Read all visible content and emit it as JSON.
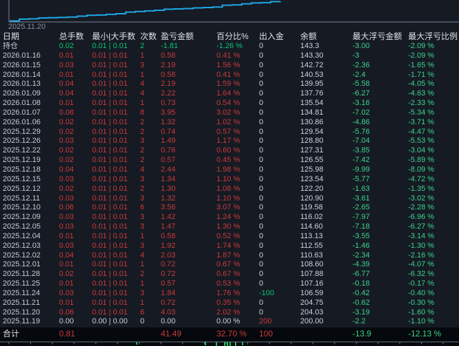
{
  "colors": {
    "background": "#151a23",
    "accent_line": "#1ea7e6",
    "profit_red": "#cc3a3a",
    "loss_green": "#0cc674",
    "float_green": "#3dd68c",
    "text": "#ccd3dd",
    "muted": "#8b93a0",
    "total_row_bg": "#05080c",
    "bottom_bar_green": "#18c060"
  },
  "chart_data": [
    {
      "type": "line",
      "name": "cumulative-profit-equity-curve",
      "title": "",
      "x_start_label": "2025.11.20",
      "x": [
        "2025.11.19",
        "2025.11.20",
        "2025.11.21",
        "2025.11.24",
        "2025.11.25",
        "2025.11.28",
        "2025.12.01",
        "2025.12.02",
        "2025.12.03",
        "2025.12.04",
        "2025.12.05",
        "2025.12.09",
        "2025.12.10",
        "2025.12.11",
        "2025.12.12",
        "2025.12.15",
        "2025.12.18",
        "2025.12.19",
        "2025.12.22",
        "2025.12.26",
        "2025.12.29",
        "2026.01.06",
        "2026.01.07",
        "2026.01.08",
        "2026.01.09",
        "2026.01.13",
        "2026.01.14",
        "2026.01.15",
        "2026.01.16"
      ],
      "values": [
        0,
        4.03,
        4.75,
        6.59,
        7.16,
        7.88,
        8.6,
        10.63,
        12.55,
        13.13,
        14.6,
        16.02,
        19.58,
        20.9,
        22.2,
        23.54,
        25.98,
        26.55,
        27.31,
        28.8,
        29.54,
        30.86,
        34.81,
        35.54,
        37.76,
        39.95,
        40.53,
        42.72,
        43.3
      ],
      "ylim": [
        0,
        43.3
      ],
      "line_color": "#1ea7e6",
      "grid": false,
      "legend": false
    },
    {
      "type": "bar",
      "name": "daily-profit-bars-clipped",
      "bars": [
        {
          "x": 199,
          "h": 4
        },
        {
          "x": 299,
          "h": 5
        },
        {
          "x": 315,
          "h": 7
        },
        {
          "x": 327,
          "h": 6
        },
        {
          "x": 331,
          "h": 7
        },
        {
          "x": 335,
          "h": 6
        },
        {
          "x": 343,
          "h": 7
        },
        {
          "x": 353,
          "h": 5
        }
      ],
      "bar_color": "#18c060",
      "axis_tick_spacing": 31.6
    }
  ],
  "table": {
    "columns": [
      "日期",
      "总手数",
      "最小|大手数",
      "次数",
      "盈亏金额",
      "百分比%",
      "出入金",
      "余额",
      "最大浮亏金额",
      "最大浮亏比例"
    ],
    "rows": [
      {
        "date": "持仓",
        "total": "0.02",
        "minmax": "0.01 | 0.01",
        "times": "2",
        "pnl": "-1.81",
        "pct": "-1.26 %",
        "cash": "0",
        "balance": "143.3",
        "mfloat": "-3.00",
        "mpct": "-2.09 %",
        "tone": "green",
        "cash_tone": "plain"
      },
      {
        "date": "2026.01.16",
        "total": "0.01",
        "minmax": "0.01 | 0.01",
        "times": "1",
        "pnl": "0.58",
        "pct": "0.41 %",
        "cash": "0",
        "balance": "143.30",
        "mfloat": "-3",
        "mpct": "-2.09 %",
        "tone": "red",
        "cash_tone": "plain"
      },
      {
        "date": "2026.01.15",
        "total": "0.03",
        "minmax": "0.01 | 0.01",
        "times": "3",
        "pnl": "2.19",
        "pct": "1.56 %",
        "cash": "0",
        "balance": "142.72",
        "mfloat": "-2.36",
        "mpct": "-1.65 %",
        "tone": "red",
        "cash_tone": "plain"
      },
      {
        "date": "2026.01.14",
        "total": "0.01",
        "minmax": "0.01 | 0.01",
        "times": "1",
        "pnl": "0.58",
        "pct": "0.41 %",
        "cash": "0",
        "balance": "140.53",
        "mfloat": "-2.4",
        "mpct": "-1.71 %",
        "tone": "red",
        "cash_tone": "plain"
      },
      {
        "date": "2026.01.13",
        "total": "0.04",
        "minmax": "0.01 | 0.01",
        "times": "4",
        "pnl": "2.19",
        "pct": "1.59 %",
        "cash": "0",
        "balance": "139.95",
        "mfloat": "-5.58",
        "mpct": "-4.05 %",
        "tone": "red",
        "cash_tone": "plain"
      },
      {
        "date": "2026.01.09",
        "total": "0.04",
        "minmax": "0.01 | 0.01",
        "times": "4",
        "pnl": "2.22",
        "pct": "1.64 %",
        "cash": "0",
        "balance": "137.76",
        "mfloat": "-6.27",
        "mpct": "-4.63 %",
        "tone": "red",
        "cash_tone": "plain"
      },
      {
        "date": "2026.01.08",
        "total": "0.01",
        "minmax": "0.01 | 0.01",
        "times": "1",
        "pnl": "0.73",
        "pct": "0.54 %",
        "cash": "0",
        "balance": "135.54",
        "mfloat": "-3.16",
        "mpct": "-2.33 %",
        "tone": "red",
        "cash_tone": "plain"
      },
      {
        "date": "2026.01.07",
        "total": "0.08",
        "minmax": "0.01 | 0.01",
        "times": "8",
        "pnl": "3.95",
        "pct": "3.02 %",
        "cash": "0",
        "balance": "134.81",
        "mfloat": "-7.02",
        "mpct": "-5.34 %",
        "tone": "red",
        "cash_tone": "plain"
      },
      {
        "date": "2026.01.06",
        "total": "0.02",
        "minmax": "0.01 | 0.01",
        "times": "2",
        "pnl": "1.32",
        "pct": "1.02 %",
        "cash": "0",
        "balance": "130.86",
        "mfloat": "-4.86",
        "mpct": "-3.71 %",
        "tone": "red",
        "cash_tone": "plain"
      },
      {
        "date": "2025.12.29",
        "total": "0.02",
        "minmax": "0.01 | 0.01",
        "times": "2",
        "pnl": "0.74",
        "pct": "0.57 %",
        "cash": "0",
        "balance": "129.54",
        "mfloat": "-5.76",
        "mpct": "-4.47 %",
        "tone": "red",
        "cash_tone": "plain"
      },
      {
        "date": "2025.12.26",
        "total": "0.03",
        "minmax": "0.01 | 0.01",
        "times": "3",
        "pnl": "1.49",
        "pct": "1.17 %",
        "cash": "0",
        "balance": "128.80",
        "mfloat": "-7.04",
        "mpct": "-5.53 %",
        "tone": "red",
        "cash_tone": "plain"
      },
      {
        "date": "2025.12.22",
        "total": "0.02",
        "minmax": "0.01 | 0.01",
        "times": "2",
        "pnl": "0.76",
        "pct": "0.60 %",
        "cash": "0",
        "balance": "127.31",
        "mfloat": "-3.85",
        "mpct": "-3.04 %",
        "tone": "red",
        "cash_tone": "plain"
      },
      {
        "date": "2025.12.19",
        "total": "0.02",
        "minmax": "0.01 | 0.01",
        "times": "2",
        "pnl": "0.57",
        "pct": "0.45 %",
        "cash": "0",
        "balance": "126.55",
        "mfloat": "-7.42",
        "mpct": "-5.89 %",
        "tone": "red",
        "cash_tone": "plain"
      },
      {
        "date": "2025.12.18",
        "total": "0.04",
        "minmax": "0.01 | 0.01",
        "times": "4",
        "pnl": "2.44",
        "pct": "1.98 %",
        "cash": "0",
        "balance": "125.98",
        "mfloat": "-9.99",
        "mpct": "-8.09 %",
        "tone": "red",
        "cash_tone": "plain"
      },
      {
        "date": "2025.12.15",
        "total": "0.03",
        "minmax": "0.01 | 0.01",
        "times": "3",
        "pnl": "1.34",
        "pct": "1.10 %",
        "cash": "0",
        "balance": "123.54",
        "mfloat": "-5.77",
        "mpct": "-4.72 %",
        "tone": "red",
        "cash_tone": "plain"
      },
      {
        "date": "2025.12.12",
        "total": "0.02",
        "minmax": "0.01 | 0.01",
        "times": "2",
        "pnl": "1.30",
        "pct": "1.08 %",
        "cash": "0",
        "balance": "122.20",
        "mfloat": "-1.63",
        "mpct": "-1.35 %",
        "tone": "red",
        "cash_tone": "plain"
      },
      {
        "date": "2025.12.11",
        "total": "0.03",
        "minmax": "0.01 | 0.01",
        "times": "3",
        "pnl": "1.32",
        "pct": "1.10 %",
        "cash": "0",
        "balance": "120.90",
        "mfloat": "-3.61",
        "mpct": "-3.02 %",
        "tone": "red",
        "cash_tone": "plain"
      },
      {
        "date": "2025.12.10",
        "total": "0.06",
        "minmax": "0.01 | 0.01",
        "times": "6",
        "pnl": "3.56",
        "pct": "3.07 %",
        "cash": "0",
        "balance": "119.58",
        "mfloat": "-2.65",
        "mpct": "-2.28 %",
        "tone": "red",
        "cash_tone": "plain"
      },
      {
        "date": "2025.12.09",
        "total": "0.03",
        "minmax": "0.01 | 0.01",
        "times": "3",
        "pnl": "1.42",
        "pct": "1.24 %",
        "cash": "0",
        "balance": "116.02",
        "mfloat": "-7.97",
        "mpct": "-6.96 %",
        "tone": "red",
        "cash_tone": "plain"
      },
      {
        "date": "2025.12.05",
        "total": "0.03",
        "minmax": "0.01 | 0.01",
        "times": "3",
        "pnl": "1.47",
        "pct": "1.30 %",
        "cash": "0",
        "balance": "114.60",
        "mfloat": "-7.18",
        "mpct": "-6.27 %",
        "tone": "red",
        "cash_tone": "plain"
      },
      {
        "date": "2025.12.04",
        "total": "0.01",
        "minmax": "0.01 | 0.01",
        "times": "1",
        "pnl": "0.58",
        "pct": "0.52 %",
        "cash": "0",
        "balance": "113.13",
        "mfloat": "-3.55",
        "mpct": "-3.14 %",
        "tone": "red",
        "cash_tone": "plain"
      },
      {
        "date": "2025.12.03",
        "total": "0.03",
        "minmax": "0.01 | 0.01",
        "times": "3",
        "pnl": "1.92",
        "pct": "1.74 %",
        "cash": "0",
        "balance": "112.55",
        "mfloat": "-1.46",
        "mpct": "-1.30 %",
        "tone": "red",
        "cash_tone": "plain"
      },
      {
        "date": "2025.12.02",
        "total": "0.04",
        "minmax": "0.01 | 0.01",
        "times": "4",
        "pnl": "2.03",
        "pct": "1.87 %",
        "cash": "0",
        "balance": "110.63",
        "mfloat": "-2.34",
        "mpct": "-2.16 %",
        "tone": "red",
        "cash_tone": "plain"
      },
      {
        "date": "2025.12.01",
        "total": "0.01",
        "minmax": "0.01 | 0.01",
        "times": "1",
        "pnl": "0.72",
        "pct": "0.67 %",
        "cash": "0",
        "balance": "108.60",
        "mfloat": "-4.39",
        "mpct": "-4.07 %",
        "tone": "red",
        "cash_tone": "plain"
      },
      {
        "date": "2025.11.28",
        "total": "0.02",
        "minmax": "0.01 | 0.01",
        "times": "2",
        "pnl": "0.72",
        "pct": "0.67 %",
        "cash": "0",
        "balance": "107.88",
        "mfloat": "-6.77",
        "mpct": "-6.32 %",
        "tone": "red",
        "cash_tone": "plain"
      },
      {
        "date": "2025.11.25",
        "total": "0.01",
        "minmax": "0.01 | 0.01",
        "times": "1",
        "pnl": "0.57",
        "pct": "0.53 %",
        "cash": "0",
        "balance": "107.16",
        "mfloat": "-0.18",
        "mpct": "-0.17 %",
        "tone": "red",
        "cash_tone": "plain"
      },
      {
        "date": "2025.11.24",
        "total": "0.03",
        "minmax": "0.01 | 0.01",
        "times": "3",
        "pnl": "1.84",
        "pct": "1.76 %",
        "cash": "-100",
        "balance": "106.59",
        "mfloat": "-0.42",
        "mpct": "-0.40 %",
        "tone": "red",
        "cash_tone": "green"
      },
      {
        "date": "2025.11.21",
        "total": "0.01",
        "minmax": "0.01 | 0.01",
        "times": "1",
        "pnl": "0.72",
        "pct": "0.35 %",
        "cash": "0",
        "balance": "204.75",
        "mfloat": "-0.62",
        "mpct": "-0.30 %",
        "tone": "red",
        "cash_tone": "plain"
      },
      {
        "date": "2025.11.20",
        "total": "0.06",
        "minmax": "0.01 | 0.01",
        "times": "6",
        "pnl": "4.03",
        "pct": "2.02 %",
        "cash": "0",
        "balance": "204.03",
        "mfloat": "-3.19",
        "mpct": "-1.60 %",
        "tone": "red",
        "cash_tone": "plain"
      },
      {
        "date": "2025.11.19",
        "total": "0.00",
        "minmax": "0.00 | 0.00",
        "times": "0",
        "pnl": "0.00",
        "pct": "0.00 %",
        "cash": "200",
        "balance": "200.00",
        "mfloat": "-2.2",
        "mpct": "-1.10 %",
        "tone": "plain",
        "cash_tone": "red"
      }
    ],
    "total_row": {
      "label": "合计",
      "total": "0.81",
      "minmax": "",
      "times": "",
      "pnl": "41.49",
      "pct": "32.70 %",
      "cash": "100",
      "balance": "",
      "mfloat": "-13.9",
      "mpct": "-12.13 %"
    }
  }
}
